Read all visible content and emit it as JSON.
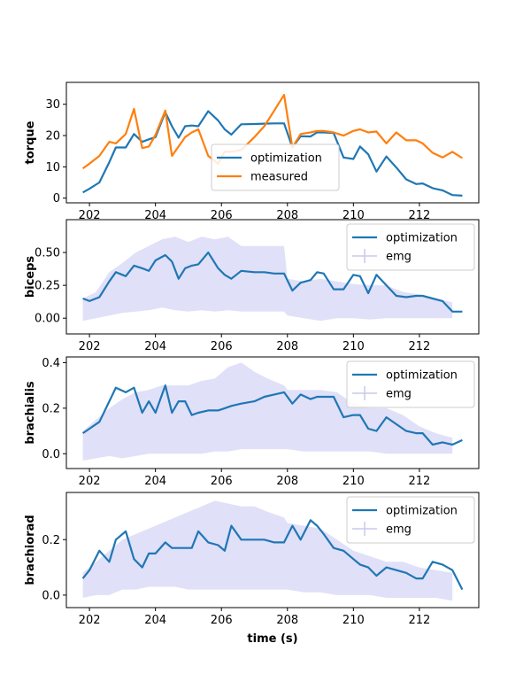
{
  "chart_data": [
    {
      "type": "line",
      "ylabel": "torque",
      "ylim": [
        -1.5,
        37
      ],
      "yticks": [
        0,
        10,
        20,
        30
      ],
      "legend": "lower-center",
      "series": [
        {
          "name": "optimization",
          "color": "#1f77b4",
          "x": [
            201.8,
            202.0,
            202.3,
            202.6,
            202.8,
            203.1,
            203.35,
            203.6,
            203.8,
            204.0,
            204.3,
            204.5,
            204.7,
            204.9,
            205.1,
            205.3,
            205.6,
            205.9,
            206.1,
            206.3,
            206.6,
            207.0,
            207.3,
            207.6,
            207.9,
            208.15,
            208.4,
            208.7,
            208.9,
            209.1,
            209.4,
            209.7,
            210.0,
            210.2,
            210.45,
            210.7,
            211.0,
            211.3,
            211.6,
            211.9,
            212.1,
            212.4,
            212.7,
            213.0,
            213.3
          ],
          "y": [
            1.8,
            3.0,
            5.0,
            11.5,
            16.2,
            16.2,
            20.5,
            18.0,
            18.8,
            19.5,
            27.5,
            23.0,
            19.3,
            23.0,
            23.2,
            23.0,
            27.8,
            24.8,
            22.0,
            20.3,
            23.6,
            23.7,
            23.8,
            23.9,
            23.9,
            16.2,
            19.8,
            19.7,
            21.0,
            21.0,
            20.8,
            13.0,
            12.5,
            16.5,
            14.0,
            8.5,
            13.3,
            9.8,
            6.0,
            4.5,
            4.7,
            3.2,
            2.5,
            1.0,
            0.8
          ]
        },
        {
          "name": "measured",
          "color": "#ff7f0e",
          "x": [
            201.8,
            202.0,
            202.3,
            202.6,
            202.8,
            203.1,
            203.35,
            203.6,
            203.8,
            204.0,
            204.3,
            204.5,
            204.7,
            204.9,
            205.1,
            205.3,
            205.6,
            205.9,
            206.1,
            206.3,
            206.6,
            207.0,
            207.3,
            207.6,
            207.9,
            208.15,
            208.4,
            208.7,
            208.9,
            209.1,
            209.4,
            209.7,
            210.0,
            210.2,
            210.45,
            210.7,
            211.0,
            211.3,
            211.6,
            211.9,
            212.1,
            212.4,
            212.7,
            213.0,
            213.3
          ],
          "y": [
            9.5,
            11.0,
            13.5,
            18.0,
            17.5,
            20.5,
            28.5,
            16.0,
            16.5,
            20.2,
            28.0,
            13.5,
            16.5,
            19.5,
            21.0,
            22.0,
            13.5,
            11.0,
            14.8,
            14.8,
            15.4,
            19.5,
            23.0,
            28.0,
            33.0,
            16.2,
            20.5,
            21.0,
            21.5,
            21.5,
            21.0,
            20.0,
            21.5,
            22.0,
            21.0,
            21.3,
            17.5,
            21.0,
            18.5,
            18.5,
            17.5,
            14.5,
            13.0,
            14.8,
            12.8
          ]
        }
      ]
    },
    {
      "type": "line",
      "ylabel": "biceps",
      "ylim": [
        -0.12,
        0.75
      ],
      "yticks": [
        "0.00",
        "0.25",
        "0.50"
      ],
      "legend": "top-right",
      "series": [
        {
          "name": "optimization",
          "color": "#1f77b4",
          "x": [
            201.8,
            202.0,
            202.3,
            202.6,
            202.8,
            203.1,
            203.35,
            203.6,
            203.8,
            204.0,
            204.3,
            204.5,
            204.7,
            204.9,
            205.1,
            205.3,
            205.6,
            205.9,
            206.1,
            206.3,
            206.6,
            207.0,
            207.3,
            207.6,
            207.9,
            208.15,
            208.4,
            208.7,
            208.9,
            209.1,
            209.4,
            209.7,
            210.0,
            210.2,
            210.45,
            210.7,
            211.0,
            211.3,
            211.6,
            211.9,
            212.1,
            212.4,
            212.7,
            213.0,
            213.3
          ],
          "y": [
            0.15,
            0.13,
            0.16,
            0.28,
            0.35,
            0.32,
            0.4,
            0.38,
            0.36,
            0.44,
            0.48,
            0.43,
            0.3,
            0.38,
            0.4,
            0.41,
            0.5,
            0.38,
            0.33,
            0.3,
            0.36,
            0.35,
            0.35,
            0.34,
            0.34,
            0.21,
            0.27,
            0.29,
            0.35,
            0.34,
            0.22,
            0.22,
            0.33,
            0.32,
            0.19,
            0.33,
            0.25,
            0.17,
            0.16,
            0.17,
            0.17,
            0.15,
            0.13,
            0.05,
            0.05
          ]
        }
      ],
      "emg": {
        "name": "emg",
        "color": "#e0e0f8",
        "x": [
          201.8,
          202.2,
          202.6,
          203.0,
          203.4,
          203.8,
          204.2,
          204.6,
          205.0,
          205.4,
          205.8,
          206.2,
          206.6,
          207.0,
          207.4,
          207.9,
          208.0,
          208.5,
          209.0,
          209.5,
          210.0,
          210.5,
          211.0,
          211.5,
          212.0,
          212.5,
          213.0
        ],
        "upper": [
          0.15,
          0.2,
          0.35,
          0.42,
          0.5,
          0.55,
          0.6,
          0.62,
          0.58,
          0.62,
          0.6,
          0.62,
          0.55,
          0.55,
          0.55,
          0.55,
          0.3,
          0.28,
          0.3,
          0.28,
          0.26,
          0.25,
          0.25,
          0.2,
          0.18,
          0.15,
          0.12
        ],
        "lower": [
          -0.02,
          0.0,
          0.02,
          0.04,
          0.05,
          0.06,
          0.08,
          0.06,
          0.05,
          0.06,
          0.05,
          0.06,
          0.05,
          0.05,
          0.05,
          0.05,
          0.02,
          0.0,
          -0.02,
          0.0,
          0.0,
          -0.01,
          0.0,
          0.0,
          0.0,
          0.0,
          0.0
        ]
      }
    },
    {
      "type": "line",
      "ylabel": "brachialis",
      "ylim": [
        -0.065,
        0.425
      ],
      "yticks": [
        "0.0",
        "0.2",
        "0.4"
      ],
      "legend": "top-right",
      "series": [
        {
          "name": "optimization",
          "color": "#1f77b4",
          "x": [
            201.8,
            202.0,
            202.3,
            202.6,
            202.8,
            203.1,
            203.35,
            203.6,
            203.8,
            204.0,
            204.3,
            204.5,
            204.7,
            204.9,
            205.1,
            205.3,
            205.6,
            205.9,
            206.1,
            206.3,
            206.6,
            207.0,
            207.3,
            207.6,
            207.9,
            208.15,
            208.4,
            208.7,
            208.9,
            209.1,
            209.4,
            209.7,
            210.0,
            210.2,
            210.45,
            210.7,
            211.0,
            211.3,
            211.6,
            211.9,
            212.1,
            212.4,
            212.7,
            213.0,
            213.3
          ],
          "y": [
            0.09,
            0.11,
            0.14,
            0.23,
            0.29,
            0.27,
            0.29,
            0.18,
            0.23,
            0.18,
            0.3,
            0.18,
            0.23,
            0.23,
            0.17,
            0.18,
            0.19,
            0.19,
            0.2,
            0.21,
            0.22,
            0.23,
            0.25,
            0.26,
            0.27,
            0.22,
            0.26,
            0.24,
            0.25,
            0.25,
            0.25,
            0.16,
            0.17,
            0.17,
            0.11,
            0.1,
            0.16,
            0.13,
            0.1,
            0.09,
            0.09,
            0.04,
            0.05,
            0.04,
            0.06
          ]
        }
      ],
      "emg": {
        "name": "emg",
        "color": "#e0e0f8",
        "x": [
          201.8,
          202.2,
          202.6,
          203.0,
          203.4,
          203.8,
          204.2,
          204.6,
          205.0,
          205.4,
          205.8,
          206.2,
          206.6,
          207.0,
          207.4,
          207.9,
          208.0,
          208.5,
          209.0,
          209.5,
          210.0,
          210.5,
          211.0,
          211.5,
          212.0,
          212.5,
          213.0
        ],
        "upper": [
          0.1,
          0.15,
          0.2,
          0.24,
          0.27,
          0.28,
          0.3,
          0.3,
          0.3,
          0.32,
          0.33,
          0.38,
          0.4,
          0.36,
          0.33,
          0.3,
          0.28,
          0.28,
          0.28,
          0.27,
          0.22,
          0.2,
          0.2,
          0.17,
          0.12,
          0.09,
          0.07
        ],
        "lower": [
          -0.03,
          -0.02,
          -0.01,
          -0.02,
          -0.01,
          0.0,
          0.0,
          0.0,
          0.0,
          0.0,
          0.01,
          0.01,
          0.02,
          0.02,
          0.02,
          0.02,
          0.02,
          0.01,
          0.01,
          0.01,
          0.01,
          0.01,
          0.0,
          0.0,
          0.0,
          0.0,
          0.0
        ]
      }
    },
    {
      "type": "line",
      "ylabel": "brachiorad",
      "xlabel": "time (s)",
      "ylim": [
        -0.045,
        0.37
      ],
      "yticks": [
        "0.0",
        "0.2"
      ],
      "xlim": [
        201.3,
        213.8
      ],
      "xticks": [
        202,
        204,
        206,
        208,
        210,
        212
      ],
      "legend": "top-right",
      "series": [
        {
          "name": "optimization",
          "color": "#1f77b4",
          "x": [
            201.8,
            202.0,
            202.3,
            202.6,
            202.8,
            203.1,
            203.35,
            203.6,
            203.8,
            204.0,
            204.3,
            204.5,
            204.7,
            204.9,
            205.1,
            205.3,
            205.6,
            205.9,
            206.1,
            206.3,
            206.6,
            207.0,
            207.3,
            207.6,
            207.9,
            208.15,
            208.4,
            208.7,
            208.9,
            209.1,
            209.4,
            209.7,
            210.0,
            210.2,
            210.45,
            210.7,
            211.0,
            211.3,
            211.6,
            211.9,
            212.1,
            212.4,
            212.7,
            213.0,
            213.3
          ],
          "y": [
            0.06,
            0.09,
            0.16,
            0.12,
            0.2,
            0.23,
            0.13,
            0.1,
            0.15,
            0.15,
            0.19,
            0.17,
            0.17,
            0.17,
            0.17,
            0.23,
            0.19,
            0.18,
            0.16,
            0.25,
            0.2,
            0.2,
            0.2,
            0.19,
            0.19,
            0.25,
            0.2,
            0.27,
            0.25,
            0.22,
            0.17,
            0.16,
            0.13,
            0.11,
            0.1,
            0.07,
            0.1,
            0.09,
            0.08,
            0.06,
            0.06,
            0.12,
            0.11,
            0.09,
            0.02
          ]
        }
      ],
      "emg": {
        "name": "emg",
        "color": "#e0e0f8",
        "x": [
          201.8,
          202.2,
          202.6,
          203.0,
          203.4,
          203.8,
          204.2,
          204.6,
          205.0,
          205.4,
          205.8,
          206.2,
          206.6,
          207.0,
          207.4,
          207.9,
          208.0,
          208.5,
          209.0,
          209.5,
          210.0,
          210.5,
          211.0,
          211.5,
          212.0,
          212.5,
          213.0
        ],
        "upper": [
          0.08,
          0.12,
          0.16,
          0.2,
          0.22,
          0.24,
          0.26,
          0.28,
          0.3,
          0.32,
          0.34,
          0.33,
          0.32,
          0.32,
          0.3,
          0.28,
          0.26,
          0.25,
          0.24,
          0.2,
          0.16,
          0.14,
          0.12,
          0.12,
          0.1,
          0.09,
          0.08
        ],
        "lower": [
          -0.01,
          0.0,
          0.0,
          0.02,
          0.02,
          0.03,
          0.03,
          0.03,
          0.02,
          0.02,
          0.02,
          0.02,
          0.02,
          0.02,
          0.02,
          0.02,
          0.02,
          0.01,
          0.01,
          0.0,
          0.0,
          0.0,
          -0.01,
          -0.01,
          -0.01,
          -0.01,
          -0.02
        ]
      }
    }
  ]
}
